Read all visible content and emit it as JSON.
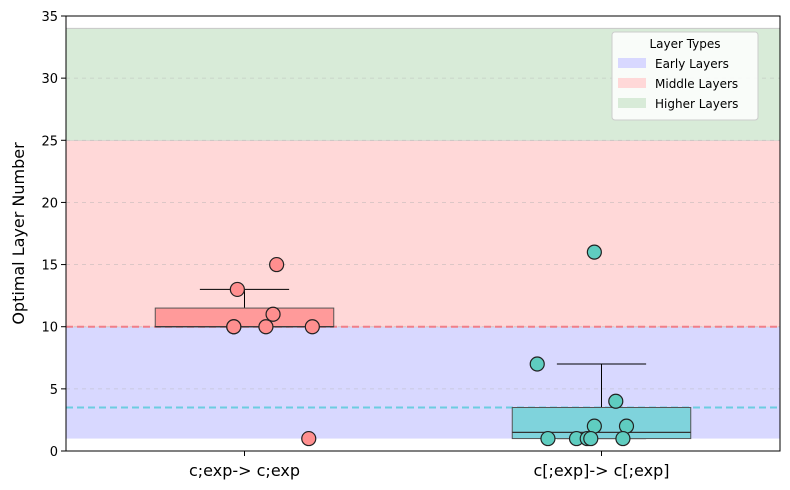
{
  "chart_data": {
    "type": "box",
    "title": "",
    "xlabel": "",
    "ylabel": "Optimal Layer Number",
    "ylim": [
      0,
      35
    ],
    "yticks": [
      0,
      5,
      10,
      15,
      20,
      25,
      30,
      35
    ],
    "grid": "horizontal dashed",
    "categories": [
      "c;exp-> c;exp",
      "c[;exp]-> c[;exp]"
    ],
    "bands": [
      {
        "name": "Early Layers",
        "from": 1,
        "to": 10,
        "color": "#d8d8ff"
      },
      {
        "name": "Middle Layers",
        "from": 10,
        "to": 25,
        "color": "#ffd8d8"
      },
      {
        "name": "Higher Layers",
        "from": 25,
        "to": 34,
        "color": "#d8ebd8"
      }
    ],
    "legend": {
      "title": "Layer Types",
      "position": "top-right"
    },
    "series": [
      {
        "category": "c;exp-> c;exp",
        "color": "#ff8f8f",
        "box_color": "#ff9a9a",
        "mean_line_color": "#f07f8a",
        "mean": 10,
        "q1": 10,
        "median": 10,
        "q3": 11.5,
        "whisker_low": 10,
        "whisker_high": 13,
        "points": [
          {
            "offset": -0.02,
            "value": 13
          },
          {
            "offset": 0.09,
            "value": 15
          },
          {
            "offset": 0.08,
            "value": 11
          },
          {
            "offset": -0.03,
            "value": 10
          },
          {
            "offset": -0.03,
            "value": 10
          },
          {
            "offset": 0.06,
            "value": 10
          },
          {
            "offset": 0.19,
            "value": 10
          },
          {
            "offset": 0.18,
            "value": 1
          }
        ]
      },
      {
        "category": "c[;exp]-> c[;exp]",
        "color": "#5fcdc0",
        "box_color": "#7fd3dc",
        "mean_line_color": "#6ccde0",
        "mean": 3.5,
        "q1": 1,
        "median": 1.5,
        "q3": 3.5,
        "whisker_low": 1,
        "whisker_high": 7,
        "points": [
          {
            "offset": -0.02,
            "value": 16
          },
          {
            "offset": -0.18,
            "value": 7
          },
          {
            "offset": 0.04,
            "value": 4
          },
          {
            "offset": -0.02,
            "value": 2
          },
          {
            "offset": 0.07,
            "value": 2
          },
          {
            "offset": -0.15,
            "value": 1
          },
          {
            "offset": -0.07,
            "value": 1
          },
          {
            "offset": -0.04,
            "value": 1
          },
          {
            "offset": -0.03,
            "value": 1
          },
          {
            "offset": 0.06,
            "value": 1
          }
        ]
      }
    ]
  }
}
